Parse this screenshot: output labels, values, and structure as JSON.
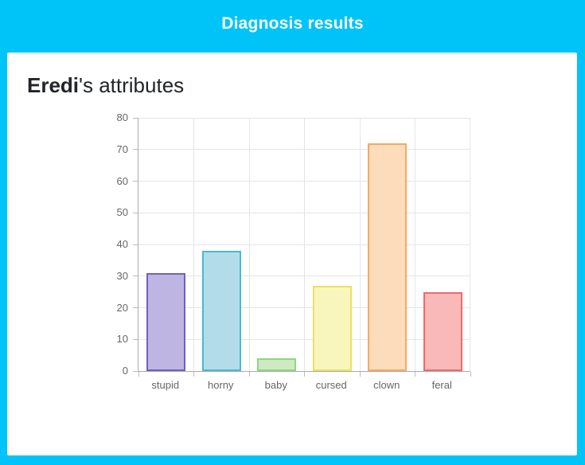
{
  "header": {
    "title": "Diagnosis results",
    "background_color": "#00c4f8",
    "text_color": "#ffffff"
  },
  "main": {
    "title_name": "Eredi",
    "title_suffix": "'s attributes"
  },
  "chart_data": {
    "type": "bar",
    "title": "Eredi's attributes",
    "categories": [
      "stupid",
      "horny",
      "baby",
      "cursed",
      "clown",
      "feral"
    ],
    "values": [
      31,
      38,
      4,
      27,
      72,
      25
    ],
    "bar_fill_colors": [
      "#beb5e3",
      "#b3dcea",
      "#cdeac2",
      "#f8f6bd",
      "#fcdcba",
      "#fab9b9"
    ],
    "bar_border_colors": [
      "#6f61c2",
      "#4bb8d2",
      "#8fd67f",
      "#e7e35f",
      "#f9a75e",
      "#f0696a"
    ],
    "xlabel": "",
    "ylabel": "",
    "ylim": [
      0,
      80
    ],
    "ytick_step": 10,
    "grid": true,
    "legend": "none",
    "axis_color": "#ababab",
    "grid_color": "#e5e5e5",
    "tick_label_color": "#666666"
  }
}
